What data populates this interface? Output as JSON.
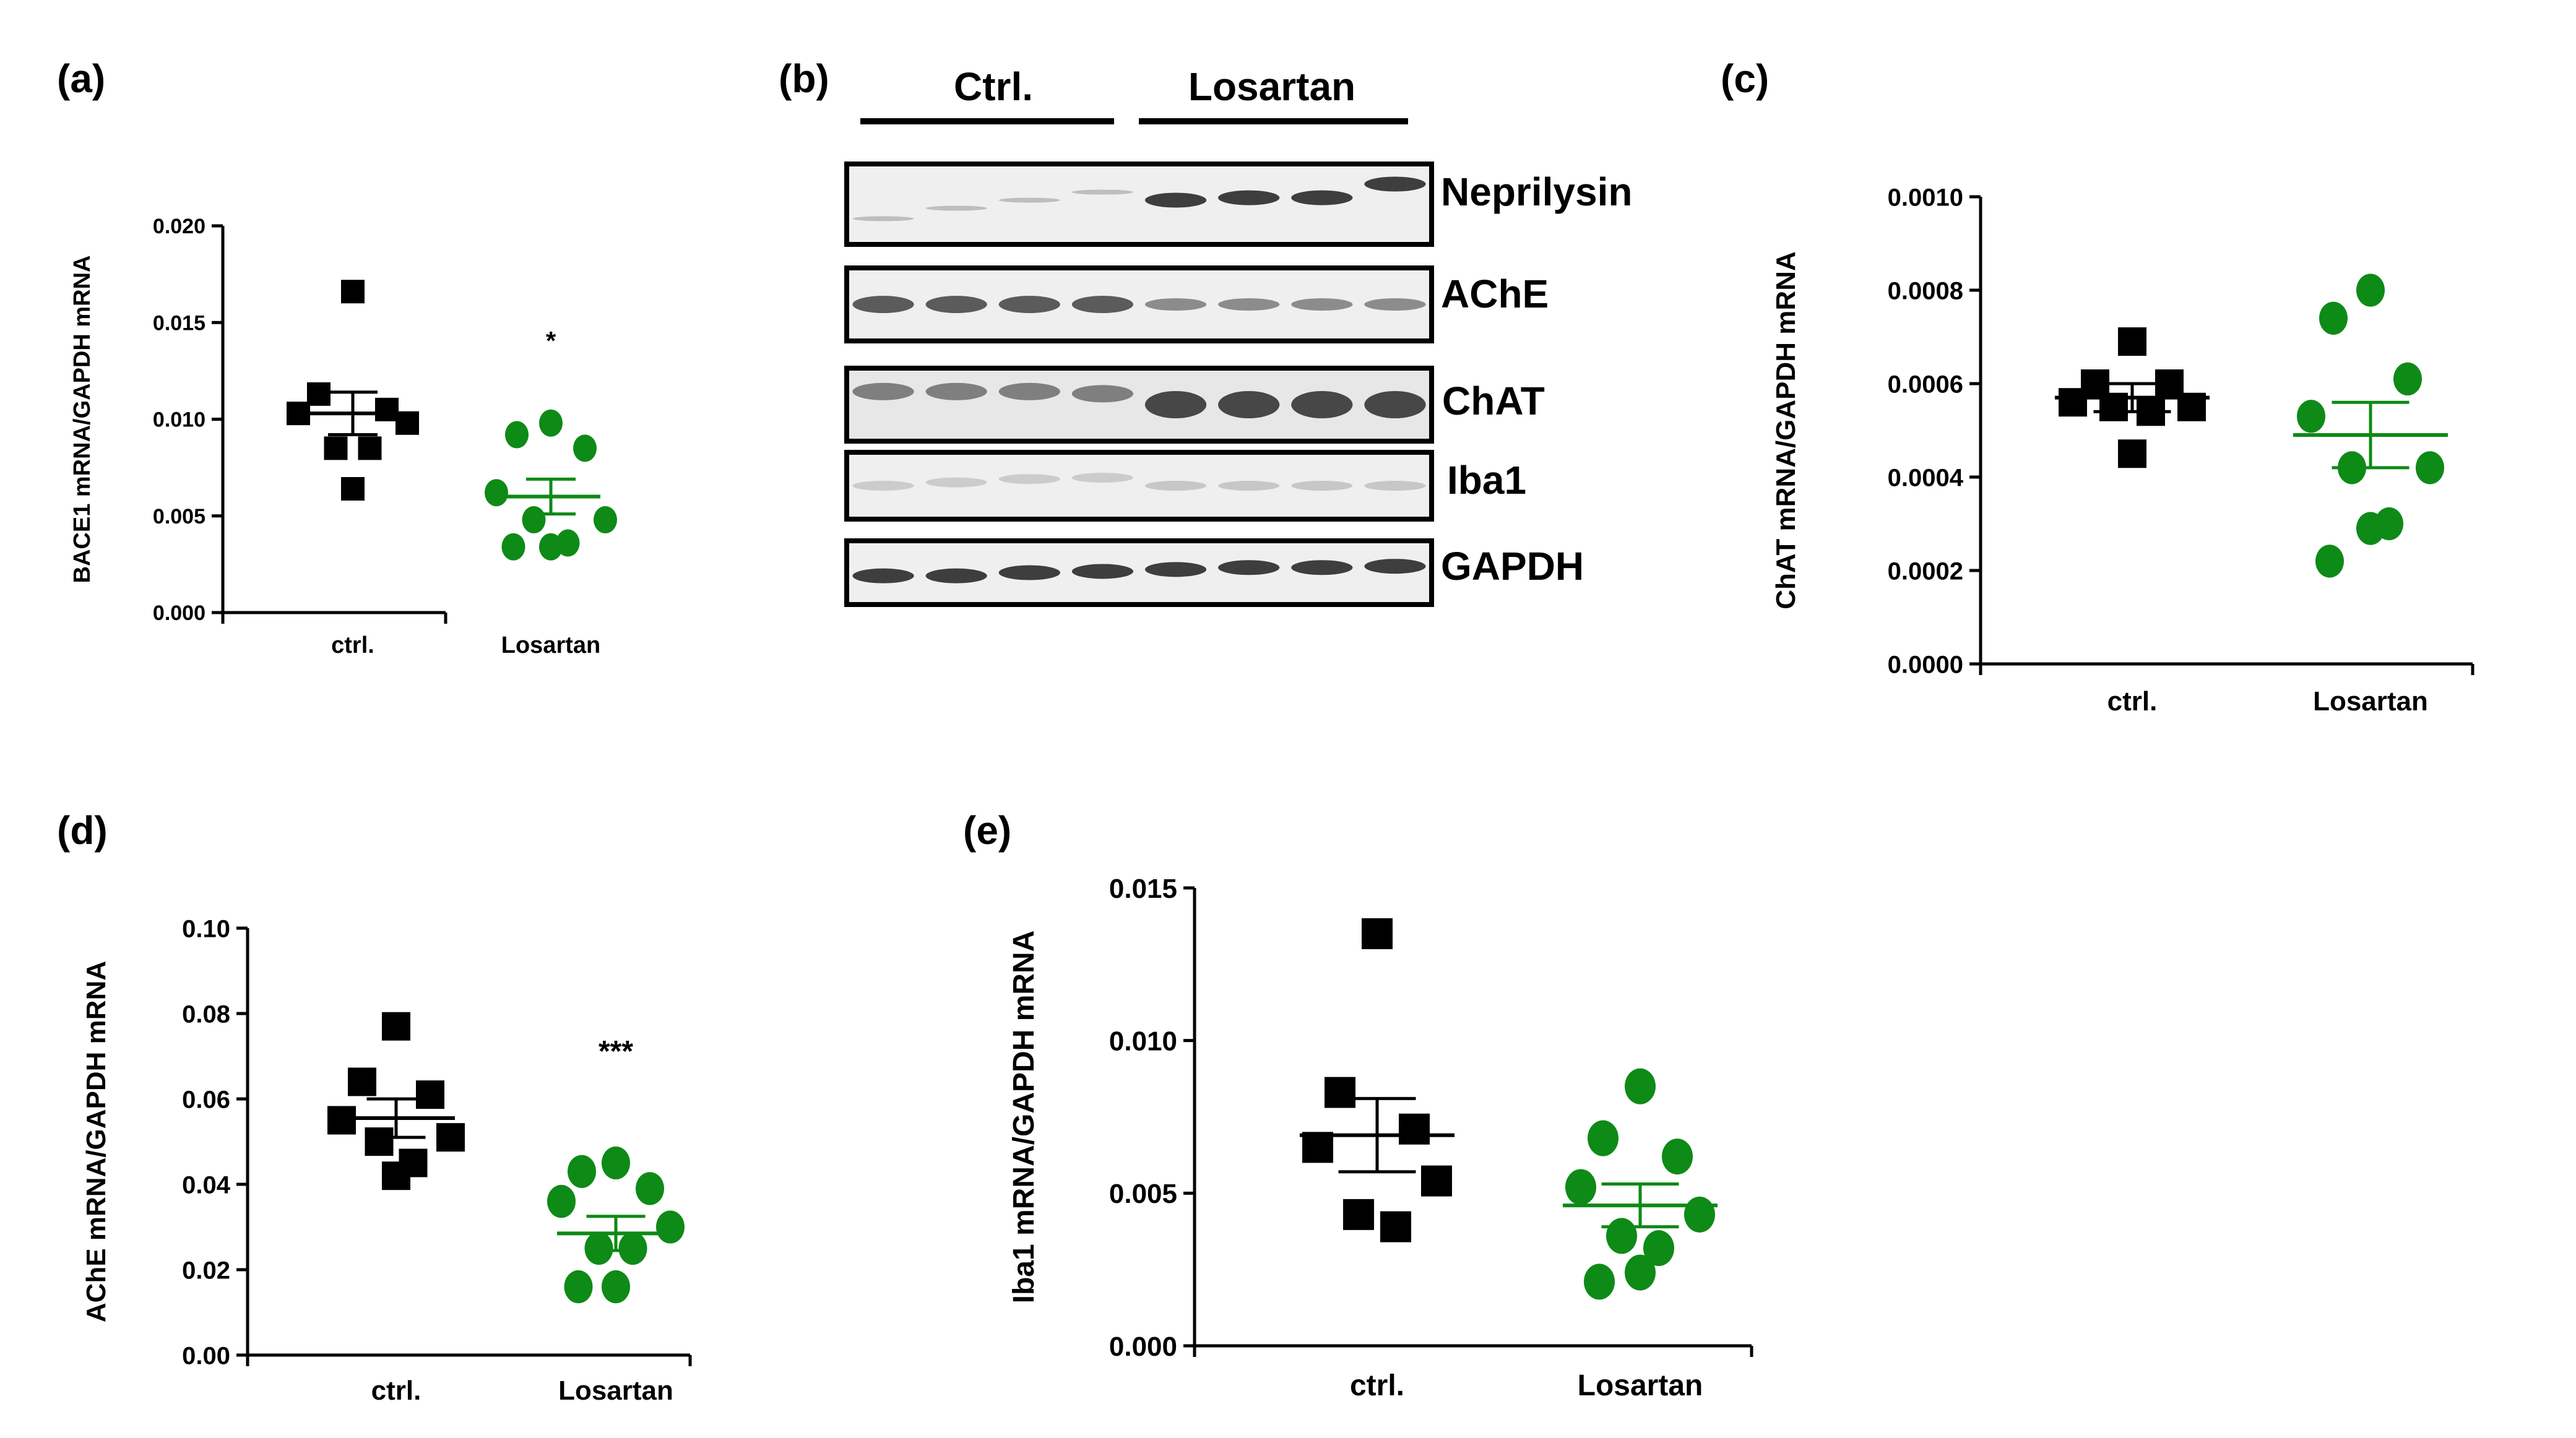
{
  "panel_labels": {
    "a": "(a)",
    "b": "(b)",
    "c": "(c)",
    "d": "(d)",
    "e": "(e)"
  },
  "colors": {
    "ctrl": "#000000",
    "losartan": "#0e8a16",
    "axis": "#000000"
  },
  "western_blot": {
    "groups": [
      "Ctrl.",
      "Losartan"
    ],
    "proteins": [
      "Neprilysin",
      "AChE",
      "ChAT",
      "Iba1",
      "GAPDH"
    ],
    "lanes_per_group": 4
  },
  "chart_data": [
    {
      "id": "a",
      "type": "scatter",
      "title": "",
      "xlabel": "",
      "ylabel": "BACE1 mRNA/GAPDH mRNA",
      "categories": [
        "ctrl.",
        "Losartan"
      ],
      "ylim": [
        0,
        0.02
      ],
      "yticks": [
        "0.000",
        "0.005",
        "0.010",
        "0.015",
        "0.020"
      ],
      "yticks_values": [
        0,
        0.005,
        0.01,
        0.015,
        0.02
      ],
      "series": [
        {
          "name": "ctrl.",
          "marker": "square",
          "values": [
            0.0166,
            0.0113,
            0.0105,
            0.0103,
            0.0098,
            0.0085,
            0.0085,
            0.0064
          ],
          "mean": 0.0103,
          "sem": 0.0011
        },
        {
          "name": "Losartan",
          "marker": "circle",
          "values": [
            0.0098,
            0.0092,
            0.0085,
            0.0062,
            0.0048,
            0.0048,
            0.0036,
            0.0034,
            0.0034
          ],
          "mean": 0.006,
          "sem": 0.0009
        }
      ],
      "annotation": "*"
    },
    {
      "id": "c",
      "type": "scatter",
      "title": "",
      "xlabel": "",
      "ylabel": "ChAT mRNA/GAPDH mRNA",
      "categories": [
        "ctrl.",
        "Losartan"
      ],
      "ylim": [
        0,
        0.001
      ],
      "yticks": [
        "0.0000",
        "0.0002",
        "0.0004",
        "0.0006",
        "0.0008",
        "0.0010"
      ],
      "yticks_values": [
        0,
        0.0002,
        0.0004,
        0.0006,
        0.0008,
        0.001
      ],
      "series": [
        {
          "name": "ctrl.",
          "marker": "square",
          "values": [
            0.00069,
            0.0006,
            0.0006,
            0.00056,
            0.00055,
            0.00055,
            0.00054,
            0.00045
          ],
          "mean": 0.00057,
          "sem": 3e-05
        },
        {
          "name": "Losartan",
          "marker": "circle",
          "values": [
            0.0008,
            0.00074,
            0.00061,
            0.00053,
            0.00042,
            0.00042,
            0.0003,
            0.00029,
            0.00022
          ],
          "mean": 0.00049,
          "sem": 7e-05
        }
      ],
      "annotation": ""
    },
    {
      "id": "d",
      "type": "scatter",
      "title": "",
      "xlabel": "",
      "ylabel": "AChE mRNA/GAPDH mRNA",
      "categories": [
        "ctrl.",
        "Losartan"
      ],
      "ylim": [
        0,
        0.1
      ],
      "yticks": [
        "0.00",
        "0.02",
        "0.04",
        "0.06",
        "0.08",
        "0.10"
      ],
      "yticks_values": [
        0,
        0.02,
        0.04,
        0.06,
        0.08,
        0.1
      ],
      "series": [
        {
          "name": "ctrl.",
          "marker": "square",
          "values": [
            0.077,
            0.064,
            0.061,
            0.055,
            0.051,
            0.05,
            0.045,
            0.042
          ],
          "mean": 0.0555,
          "sem": 0.0045
        },
        {
          "name": "Losartan",
          "marker": "circle",
          "values": [
            0.045,
            0.043,
            0.039,
            0.036,
            0.03,
            0.025,
            0.025,
            0.016,
            0.016
          ],
          "mean": 0.0285,
          "sem": 0.004
        }
      ],
      "annotation": "***"
    },
    {
      "id": "e",
      "type": "scatter",
      "title": "",
      "xlabel": "",
      "ylabel": "Iba1 mRNA/GAPDH mRNA",
      "categories": [
        "ctrl.",
        "Losartan"
      ],
      "ylim": [
        0,
        0.015
      ],
      "yticks": [
        "0.000",
        "0.005",
        "0.010",
        "0.015"
      ],
      "yticks_values": [
        0,
        0.005,
        0.01,
        0.015
      ],
      "series": [
        {
          "name": "ctrl.",
          "marker": "square",
          "values": [
            0.0135,
            0.0083,
            0.0071,
            0.0065,
            0.0054,
            0.0043,
            0.0039
          ],
          "mean": 0.0069,
          "sem": 0.0012
        },
        {
          "name": "Losartan",
          "marker": "circle",
          "values": [
            0.0085,
            0.0068,
            0.0062,
            0.0052,
            0.0043,
            0.0036,
            0.0032,
            0.0024,
            0.0021
          ],
          "mean": 0.0046,
          "sem": 0.0007
        }
      ],
      "annotation": ""
    }
  ]
}
